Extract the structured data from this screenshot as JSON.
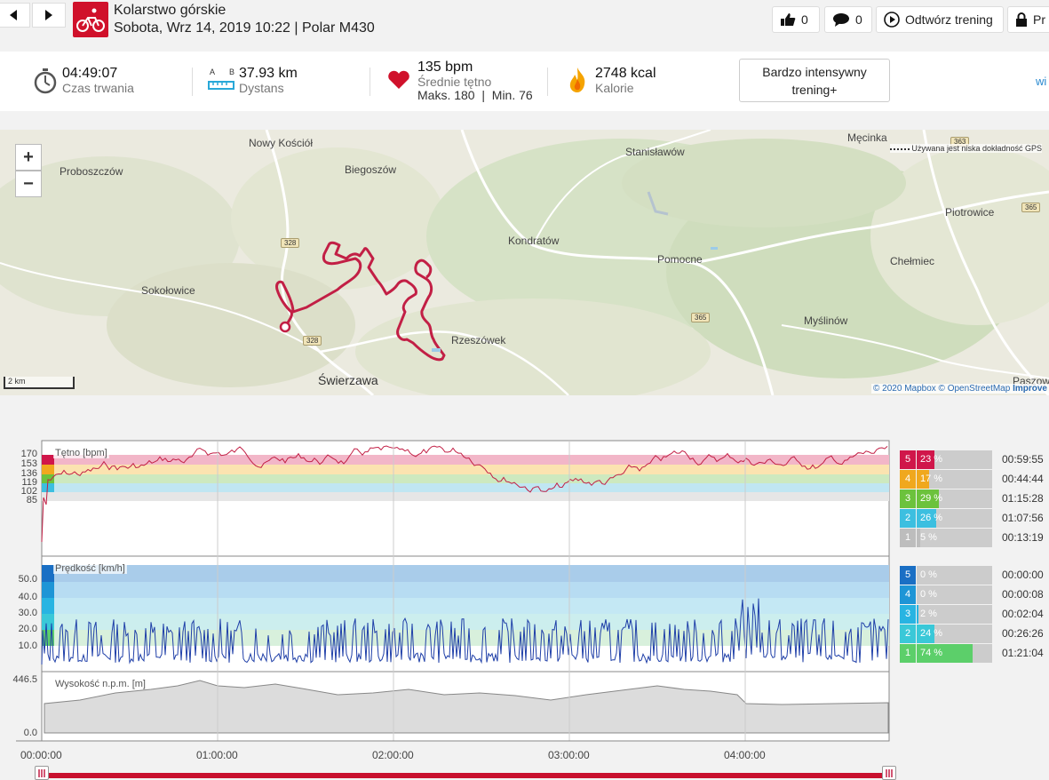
{
  "header": {
    "title": "Kolarstwo górskie",
    "subtitle": "Sobota, Wrz 14, 2019 10:22 | Polar M430",
    "likes_count": "0",
    "comments_count": "0",
    "replay_label": "Odtwórz trening",
    "privacy_label": "Pr",
    "icons": {
      "back": "chevron-left-icon",
      "forward": "chevron-right-icon",
      "sport": "bike-icon",
      "like": "thumbs-up-icon",
      "comment": "comment-icon",
      "replay": "play-icon",
      "privacy": "lock-icon"
    }
  },
  "summary": {
    "duration": {
      "value": "04:49:07",
      "label": "Czas trwania"
    },
    "distance": {
      "value": "37.93 km",
      "label": "Dystans",
      "a": "A",
      "b": "B"
    },
    "heart": {
      "value": "135 bpm",
      "label": "Średnie tętno",
      "max_min": "Maks. 180  |  Min. 76"
    },
    "calories": {
      "value": "2748 kcal",
      "label": "Kalorie"
    },
    "intensity": "Bardzo intensywny trening+",
    "side_link": "wi"
  },
  "map": {
    "labels": [
      "Nowy Kościół",
      "Biegoszów",
      "Proboszczów",
      "Sokołowice",
      "Kondratów",
      "Stanisławów",
      "Pomocne",
      "Rzeszówek",
      "Świerzawa",
      "Męcinka",
      "Piotrowice",
      "Chełmiec",
      "Myślinów",
      "Paszow"
    ],
    "roads": [
      "328",
      "328",
      "365",
      "363",
      "365"
    ],
    "gps_note": "Używana jest niska dokładność GPS",
    "scale": "2 km",
    "zoom_in": "+",
    "zoom_out": "−",
    "attribution": "© 2020 Mapbox © OpenStreetMap",
    "improve": "Improve"
  },
  "heart_chart": {
    "title": "Tętno [bpm]",
    "y_ticks": [
      "170",
      "153",
      "136",
      "119",
      "102",
      "85"
    ],
    "zones": [
      {
        "num": "5",
        "pct": "23 %",
        "pct_value": 23,
        "time": "00:59:55",
        "color": "#d0164a"
      },
      {
        "num": "4",
        "pct": "17 %",
        "pct_value": 17,
        "time": "00:44:44",
        "color": "#f0a81e"
      },
      {
        "num": "3",
        "pct": "29 %",
        "pct_value": 29,
        "time": "01:15:28",
        "color": "#6cc23c"
      },
      {
        "num": "2",
        "pct": "26 %",
        "pct_value": 26,
        "time": "01:07:56",
        "color": "#3cbfe0"
      },
      {
        "num": "1",
        "pct": "5 %",
        "pct_value": 5,
        "time": "00:13:19",
        "color": "#bdbdbd"
      }
    ]
  },
  "speed_chart": {
    "title": "Prędkość [km/h]",
    "y_ticks": [
      "50.0",
      "40.0",
      "30.0",
      "20.0",
      "10.0"
    ],
    "zones": [
      {
        "num": "5",
        "pct": "0 %",
        "pct_value": 0,
        "time": "00:00:00",
        "color": "#1a6fc4"
      },
      {
        "num": "4",
        "pct": "0 %",
        "pct_value": 0,
        "time": "00:00:08",
        "color": "#1e95d6"
      },
      {
        "num": "3",
        "pct": "2 %",
        "pct_value": 2,
        "time": "00:02:04",
        "color": "#28b4e2"
      },
      {
        "num": "2",
        "pct": "24 %",
        "pct_value": 24,
        "time": "00:26:26",
        "color": "#3ac8d8"
      },
      {
        "num": "1",
        "pct": "74 %",
        "pct_value": 74,
        "time": "01:21:04",
        "color": "#5ccf6a"
      }
    ]
  },
  "altitude_chart": {
    "title": "Wysokość n.p.m. [m]",
    "y_ticks": [
      "446.5",
      "0.0"
    ]
  },
  "time_axis": [
    "00:00:00",
    "01:00:00",
    "02:00:00",
    "03:00:00",
    "04:00:00"
  ]
}
